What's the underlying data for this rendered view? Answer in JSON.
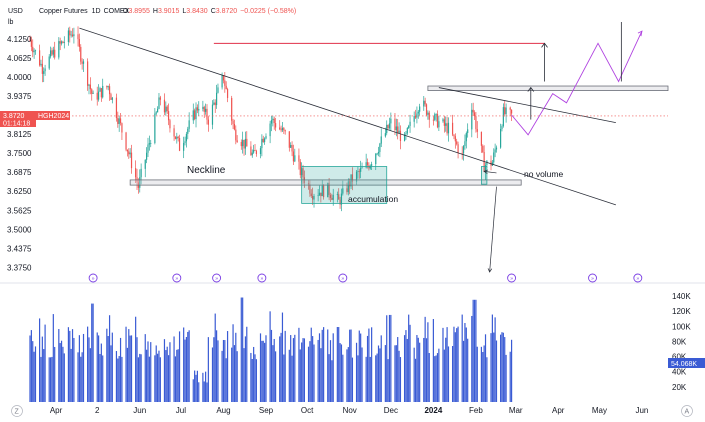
{
  "header": {
    "currency": "USD",
    "unit": "lb",
    "symbol": "Copper Futures",
    "interval": "1D",
    "exchange": "COMEX",
    "open_label": "O",
    "open": "3.8955",
    "high_label": "H",
    "high": "3.9015",
    "low_label": "L",
    "low": "3.8430",
    "close_label": "C",
    "close": "3.8720",
    "change": "−0.0225 (−0.58%)"
  },
  "price_tag": {
    "price": "3.8720",
    "ticker": "HGH2024",
    "countdown": "01:14:18"
  },
  "volume_tag": "54.068K",
  "annotations": {
    "neckline": "Neckline",
    "accumulation": "accumulation",
    "no_volume": "no volume"
  },
  "year_label": "2024",
  "corner_left": "Z",
  "corner_right": "A",
  "event_marks": [
    {
      "date": "2023-04-28"
    },
    {
      "date": "2023-06-28"
    },
    {
      "date": "2023-07-27"
    },
    {
      "date": "2023-08-29"
    },
    {
      "date": "2023-10-27"
    },
    {
      "date": "2024-02-27"
    },
    {
      "date": "2024-04-26"
    },
    {
      "date": "2024-05-29"
    }
  ],
  "colors": {
    "up": "#26a69a",
    "down": "#ef5350",
    "volume": "#3a5bd4",
    "red_line": "#e0304a",
    "projection": "#b044e0",
    "event": "#7b3fe4",
    "trend": "#2a2e39"
  },
  "chart_data": {
    "type": "candlestick",
    "x_start": "2023-03-13",
    "x_end": "2024-06-20",
    "x_ticks": [
      {
        "label": "Apr",
        "date": "2023-04-01"
      },
      {
        "label": "2",
        "date": "2023-05-01"
      },
      {
        "label": "Jun",
        "date": "2023-06-01"
      },
      {
        "label": "Jul",
        "date": "2023-07-01"
      },
      {
        "label": "Aug",
        "date": "2023-08-01"
      },
      {
        "label": "Sep",
        "date": "2023-09-01"
      },
      {
        "label": "Oct",
        "date": "2023-10-01"
      },
      {
        "label": "Nov",
        "date": "2023-11-01"
      },
      {
        "label": "Dec",
        "date": "2023-12-01"
      },
      {
        "label": "2024",
        "date": "2024-01-01"
      },
      {
        "label": "Feb",
        "date": "2024-02-01"
      },
      {
        "label": "Mar",
        "date": "2024-03-01"
      },
      {
        "label": "Apr",
        "date": "2024-04-01"
      },
      {
        "label": "May",
        "date": "2024-05-01"
      },
      {
        "label": "Jun",
        "date": "2024-06-01"
      }
    ],
    "price_ticks": [
      "4.1250",
      "4.0625",
      "4.0000",
      "3.9375",
      "3.8125",
      "3.7500",
      "3.6875",
      "3.6250",
      "3.5625",
      "3.5000",
      "3.4375",
      "3.3750"
    ],
    "ylim": [
      3.36,
      4.18
    ],
    "volume_ticks": [
      "140K",
      "120K",
      "100K",
      "80K",
      "60K",
      "40K",
      "20K"
    ],
    "volume_ylim": [
      0,
      140
    ],
    "price_path": [
      {
        "date": "2023-03-13",
        "close": 4.12
      },
      {
        "date": "2023-03-22",
        "close": 4.03
      },
      {
        "date": "2023-04-03",
        "close": 4.1
      },
      {
        "date": "2023-04-14",
        "close": 4.15
      },
      {
        "date": "2023-04-28",
        "close": 3.93
      },
      {
        "date": "2023-05-09",
        "close": 3.97
      },
      {
        "date": "2023-05-22",
        "close": 3.78
      },
      {
        "date": "2023-05-31",
        "close": 3.64
      },
      {
        "date": "2023-06-16",
        "close": 3.93
      },
      {
        "date": "2023-06-30",
        "close": 3.77
      },
      {
        "date": "2023-07-14",
        "close": 3.91
      },
      {
        "date": "2023-07-21",
        "close": 3.86
      },
      {
        "date": "2023-08-01",
        "close": 4.0
      },
      {
        "date": "2023-08-09",
        "close": 3.82
      },
      {
        "date": "2023-08-23",
        "close": 3.74
      },
      {
        "date": "2023-09-05",
        "close": 3.86
      },
      {
        "date": "2023-09-15",
        "close": 3.81
      },
      {
        "date": "2023-09-26",
        "close": 3.69
      },
      {
        "date": "2023-10-05",
        "close": 3.62
      },
      {
        "date": "2023-10-16",
        "close": 3.63
      },
      {
        "date": "2023-10-24",
        "close": 3.59
      },
      {
        "date": "2023-11-02",
        "close": 3.66
      },
      {
        "date": "2023-11-16",
        "close": 3.72
      },
      {
        "date": "2023-12-01",
        "close": 3.85
      },
      {
        "date": "2023-12-11",
        "close": 3.79
      },
      {
        "date": "2023-12-22",
        "close": 3.92
      },
      {
        "date": "2024-01-02",
        "close": 3.86
      },
      {
        "date": "2024-01-12",
        "close": 3.83
      },
      {
        "date": "2024-01-22",
        "close": 3.74
      },
      {
        "date": "2024-01-29",
        "close": 3.91
      },
      {
        "date": "2024-02-07",
        "close": 3.71
      },
      {
        "date": "2024-02-13",
        "close": 3.72
      },
      {
        "date": "2024-02-21",
        "close": 3.88
      },
      {
        "date": "2024-02-27",
        "close": 3.872
      }
    ],
    "neckline": {
      "y_top": 3.662,
      "y_bottom": 3.645,
      "x_from": "2023-05-25",
      "x_to": "2024-03-05"
    },
    "accumulation_box": {
      "x_from": "2023-09-27",
      "x_to": "2023-11-28",
      "y_top": 3.706,
      "y_bottom": 3.585
    },
    "small_box": {
      "x_from": "2024-02-05",
      "x_to": "2024-02-09",
      "y_top": 3.706,
      "y_bottom": 3.648
    },
    "resistance_box": {
      "x_from": "2023-12-28",
      "x_to": "2024-06-20",
      "y_top": 3.97,
      "y_bottom": 3.955
    },
    "red_level": {
      "y": 4.11,
      "x_from": "2023-07-25",
      "x_to": "2024-03-22"
    },
    "descending_trendline": {
      "x1": "2023-04-18",
      "y1": 4.16,
      "x2": "2024-05-13",
      "y2": 3.58
    },
    "upper_trendline": {
      "x1": "2024-01-05",
      "y1": 3.965,
      "x2": "2024-05-13",
      "y2": 3.85
    },
    "current_price": 3.872,
    "projection_path": [
      {
        "date": "2024-02-27",
        "price": 3.875
      },
      {
        "date": "2024-03-10",
        "price": 3.81
      },
      {
        "date": "2024-03-28",
        "price": 3.945
      },
      {
        "date": "2024-04-07",
        "price": 3.915
      },
      {
        "date": "2024-04-30",
        "price": 4.11
      },
      {
        "date": "2024-05-15",
        "price": 3.985
      },
      {
        "date": "2024-06-01",
        "price": 4.15
      }
    ],
    "target_arrows": [
      {
        "date": "2024-03-12",
        "from": 3.86,
        "to": 3.965
      },
      {
        "date": "2024-03-22",
        "from": 3.985,
        "to": 4.11
      }
    ],
    "tall_line": {
      "date": "2024-05-17",
      "from": 3.985,
      "to": 4.18
    },
    "pointer_arrows": [
      {
        "label": "no volume",
        "from_date": "2024-02-16",
        "from_price": 3.685,
        "to_date": "2024-02-07",
        "to_price": 3.69
      },
      {
        "from_date": "2024-02-16",
        "from_price": 3.64,
        "to_date": "2024-02-11",
        "to_price": 3.36
      }
    ],
    "volume_peaks": [
      {
        "date": "2023-04-28",
        "volume": 130
      },
      {
        "date": "2023-08-14",
        "volume": 138
      },
      {
        "date": "2023-12-01",
        "volume": 115
      },
      {
        "date": "2024-01-31",
        "volume": 135
      }
    ]
  }
}
